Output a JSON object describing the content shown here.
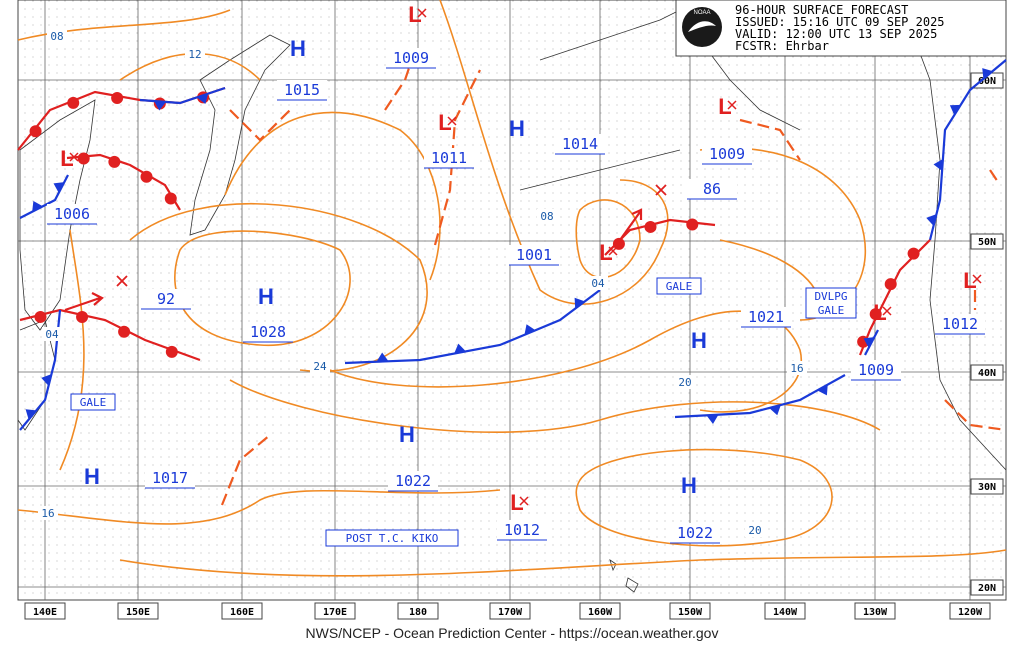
{
  "header": {
    "lines": [
      "96-HOUR SURFACE FORECAST",
      "ISSUED: 15:16 UTC 09 SEP 2025",
      "VALID:  12:00 UTC 13 SEP 2025",
      "FCSTR:  Ehrbar"
    ],
    "logo": "NOAA"
  },
  "longitudes": [
    "140E",
    "150E",
    "160E",
    "170E",
    "180",
    "170W",
    "160W",
    "150W",
    "140W",
    "130W",
    "120W"
  ],
  "latitudes": [
    "60N",
    "50N",
    "40N",
    "30N",
    "20N"
  ],
  "centers": [
    "H",
    "H",
    "H",
    "H",
    "H",
    "H",
    "H",
    "L",
    "L",
    "L",
    "L",
    "L",
    "L",
    "L",
    "L"
  ],
  "pressures": [
    "1009",
    "1015",
    "1011",
    "1014",
    "1009",
    "86",
    "1001",
    "1006",
    "92",
    "1028",
    "1021",
    "1012",
    "1009",
    "1017",
    "1022",
    "1012",
    "1022"
  ],
  "notes": [
    "GALE",
    "GALE",
    "DVLPG",
    "GALE",
    "POST T.C. KIKO"
  ],
  "isobar_labels": [
    "08",
    "12",
    "08",
    "04",
    "04",
    "24",
    "16",
    "20",
    "16",
    "20"
  ],
  "footer": "NWS/NCEP - Ocean Prediction Center - https://ocean.weather.gov"
}
